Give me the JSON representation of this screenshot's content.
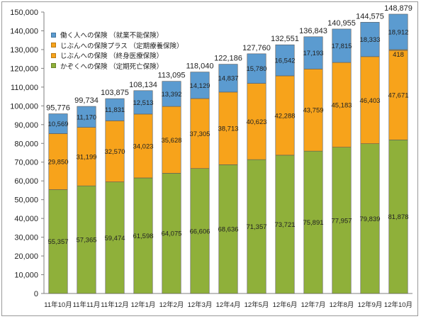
{
  "chart_data": {
    "type": "bar",
    "stacked": true,
    "categories": [
      "11年10月",
      "11年11月",
      "11年12月",
      "12年1月",
      "12年2月",
      "12年3月",
      "12年4月",
      "12年5月",
      "12年6月",
      "12年7月",
      "12年8月",
      "12年9月",
      "12年10月"
    ],
    "series": [
      {
        "name": "かぞくへの保険 （定期死亡保険）",
        "color": "#8fb03a",
        "values": [
          55357,
          57365,
          59474,
          61598,
          64075,
          66606,
          68636,
          71357,
          73721,
          75891,
          77957,
          79839,
          81878
        ]
      },
      {
        "name": "じぶんへの保険 （終身医療保険）",
        "color": "#f7a31b",
        "values": [
          29850,
          31199,
          32570,
          34023,
          35628,
          37305,
          38713,
          40623,
          42288,
          43759,
          45183,
          46403,
          47671
        ]
      },
      {
        "name": "じぶんへの保険プラス （定期療養保険）",
        "color": "#f7a31b",
        "values": [
          0,
          0,
          0,
          0,
          0,
          0,
          0,
          0,
          0,
          0,
          0,
          0,
          418
        ]
      },
      {
        "name": "働く人への保険 （就業不能保険）",
        "color": "#5b9bd0",
        "values": [
          10569,
          11170,
          11831,
          12513,
          13392,
          14129,
          14837,
          15780,
          16542,
          17193,
          17815,
          18333,
          18912
        ]
      }
    ],
    "value_labels": [
      [
        "55,357",
        "57,365",
        "59,474",
        "61,598",
        "64,075",
        "66,606",
        "68,636",
        "71,357",
        "73,721",
        "75,891",
        "77,957",
        "79,839",
        "81,878"
      ],
      [
        "29,850",
        "31,199",
        "32,570",
        "34,023",
        "35,628",
        "37,305",
        "38,713",
        "40,623",
        "42,288",
        "43,759",
        "45,183",
        "46,403",
        "47,671"
      ],
      [
        "",
        "",
        "",
        "",
        "",
        "",
        "",
        "",
        "",
        "",
        "",
        "",
        "418"
      ],
      [
        "10,569",
        "11,170",
        "11,831",
        "12,513",
        "13,392",
        "14,129",
        "14,837",
        "15,780",
        "16,542",
        "17,193",
        "17,815",
        "18,333",
        "18,912"
      ]
    ],
    "totals": [
      95776,
      99734,
      103875,
      108134,
      113095,
      118040,
      122186,
      127760,
      132551,
      136843,
      140955,
      144575,
      148879
    ],
    "total_labels": [
      "95,776",
      "99,734",
      "103,875",
      "108,134",
      "113,095",
      "118,040",
      "122,186",
      "127,760",
      "132,551",
      "136,843",
      "140,955",
      "144,575",
      "148,879"
    ],
    "ylim": [
      0,
      150000
    ],
    "yticks": [
      0,
      10000,
      20000,
      30000,
      40000,
      50000,
      60000,
      70000,
      80000,
      90000,
      100000,
      110000,
      120000,
      130000,
      140000,
      150000
    ],
    "ytick_labels": [
      "0",
      "10,000",
      "20,000",
      "30,000",
      "40,000",
      "50,000",
      "60,000",
      "70,000",
      "80,000",
      "90,000",
      "100,000",
      "110,000",
      "120,000",
      "130,000",
      "140,000",
      "150,000"
    ],
    "legend": {
      "placement": "top-left",
      "items": [
        {
          "label": "働く人への保険 （就業不能保険）",
          "color": "#5b9bd0"
        },
        {
          "label": "じぶんへの保険プラス （定期療養保険）",
          "color": "#f7a31b"
        },
        {
          "label": "じぶんへの保険 （終身医療保険）",
          "color": "#f7a31b"
        },
        {
          "label": "かぞくへの保険 （定期死亡保険）",
          "color": "#8fb03a"
        }
      ]
    },
    "grid": false
  }
}
